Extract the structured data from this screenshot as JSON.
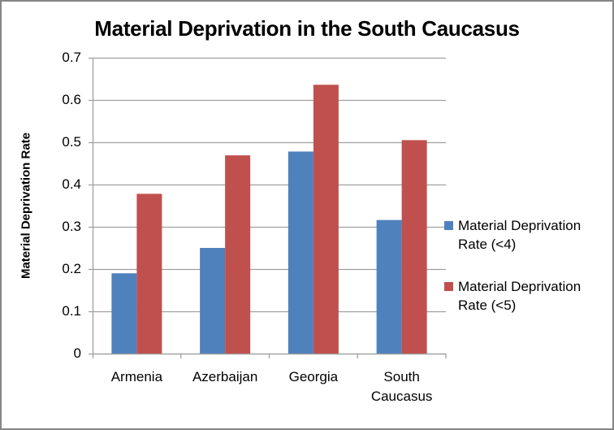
{
  "chart_data": {
    "type": "bar",
    "title": "Material Deprivation in the South Caucasus",
    "xlabel": "",
    "ylabel": "Material Deprivation Rate",
    "ylim": [
      0,
      0.7
    ],
    "yticks": [
      "0",
      "0.1",
      "0.2",
      "0.3",
      "0.4",
      "0.5",
      "0.6",
      "0.7"
    ],
    "grid": true,
    "legend_position": "right",
    "categories": [
      "Armenia",
      "Azerbaijan",
      "Georgia",
      "South Caucasus"
    ],
    "series": [
      {
        "name": "Material Deprivation Rate (<4)",
        "color": "#4F81BD",
        "values": [
          0.19,
          0.25,
          0.478,
          0.316
        ]
      },
      {
        "name": "Material Deprivation Rate (<5)",
        "color": "#C0504D",
        "values": [
          0.378,
          0.469,
          0.636,
          0.505
        ]
      }
    ]
  },
  "labels": {
    "title": "Material Deprivation in the South Caucasus",
    "ylabel": "Material Deprivation Rate",
    "categories": [
      "Armenia",
      "Azerbaijan",
      "Georgia",
      "South\nCaucasus"
    ],
    "yticks": [
      "0",
      "0.1",
      "0.2",
      "0.3",
      "0.4",
      "0.5",
      "0.6",
      "0.7"
    ],
    "legend": [
      {
        "line1": "Material Deprivation",
        "line2": "Rate (<4)"
      },
      {
        "line1": "Material Deprivation",
        "line2": "Rate (<5)"
      }
    ]
  }
}
